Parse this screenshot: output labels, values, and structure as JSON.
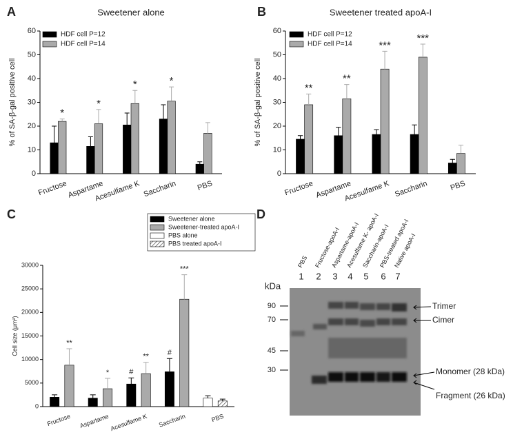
{
  "chart_data": [
    {
      "type": "bar",
      "panel": "A",
      "title": "Sweetener alone",
      "y_label": "% of SA-β-gal positive cell",
      "categories": [
        "Fructose",
        "Aspartame",
        "Acesulfame K",
        "Saccharin",
        "PBS"
      ],
      "series": [
        {
          "name": "HDF cell P=12",
          "color": "#000000",
          "values": [
            13,
            11.5,
            20.5,
            23,
            4
          ],
          "errors": [
            7,
            4,
            5,
            6,
            1
          ],
          "annotations": [
            null,
            null,
            null,
            null,
            null
          ]
        },
        {
          "name": "HDF cell P=14",
          "color": "#aaaaaa",
          "values": [
            22,
            21,
            29.5,
            30.5,
            17
          ],
          "errors": [
            1,
            6,
            5.5,
            6,
            4.5
          ],
          "annotations": [
            "*",
            "*",
            "*",
            "*",
            null
          ]
        }
      ],
      "ylim": [
        0,
        60
      ],
      "yticks": [
        0,
        10,
        20,
        30,
        40,
        50,
        60
      ],
      "legend": "upper left"
    },
    {
      "type": "bar",
      "panel": "B",
      "title": "Sweetener treated apoA-I",
      "y_label": "% of SA-β-gal positive cell",
      "categories": [
        "Fructose",
        "Aspartame",
        "Acesulfame K",
        "Saccharin",
        "PBS"
      ],
      "series": [
        {
          "name": "HDF cell P=12",
          "color": "#000000",
          "values": [
            14.5,
            16,
            16.5,
            16.5,
            4.5
          ],
          "errors": [
            1.5,
            3.5,
            2,
            4,
            1.5
          ],
          "annotations": [
            null,
            null,
            null,
            null,
            null
          ]
        },
        {
          "name": "HDF cell P=14",
          "color": "#aaaaaa",
          "values": [
            29,
            31.5,
            44,
            49,
            8.5
          ],
          "errors": [
            4.5,
            6,
            7.5,
            5.5,
            3.5
          ],
          "annotations": [
            "**",
            "**",
            "***",
            "***",
            null
          ]
        }
      ],
      "ylim": [
        0,
        60
      ],
      "yticks": [
        0,
        10,
        20,
        30,
        40,
        50,
        60
      ],
      "legend": "upper left"
    },
    {
      "type": "bar",
      "panel": "C",
      "y_label": "Cell size (μm²)",
      "categories": [
        "Fructose",
        "Aspartame",
        "Acesulfame K",
        "Saccharin",
        "PBS"
      ],
      "series": [
        {
          "name": "Sweetener alone",
          "color": "#000000",
          "values": [
            2000,
            1800,
            4800,
            7400,
            null
          ],
          "errors": [
            500,
            700,
            1300,
            2800,
            null
          ],
          "annotations": [
            null,
            null,
            "#",
            "#",
            null
          ]
        },
        {
          "name": "Sweetener-treated apoA-I",
          "color": "#aaaaaa",
          "values": [
            8800,
            3800,
            7000,
            22800,
            null
          ],
          "errors": [
            3500,
            2200,
            2400,
            5200,
            null
          ],
          "annotations": [
            "**",
            "*",
            "**",
            "***",
            null
          ]
        },
        {
          "name": "PBS alone",
          "color": "#ffffff",
          "values": [
            null,
            null,
            null,
            null,
            1800
          ],
          "errors": [
            null,
            null,
            null,
            null,
            500
          ],
          "annotations": [
            null,
            null,
            null,
            null,
            null
          ]
        },
        {
          "name": "PBS treated apoA-I",
          "color": "#ffffff",
          "pattern": "hatch",
          "values": [
            null,
            null,
            null,
            null,
            1200
          ],
          "errors": [
            null,
            null,
            null,
            null,
            400
          ],
          "annotations": [
            null,
            null,
            null,
            null,
            null
          ]
        }
      ],
      "ylim": [
        0,
        30000
      ],
      "yticks": [
        0,
        5000,
        10000,
        15000,
        20000,
        25000,
        30000
      ],
      "legend": "outside upper right"
    }
  ],
  "blot": {
    "panel": "D",
    "unit": "kDa",
    "lanes": [
      {
        "number": "1",
        "name": "PBS"
      },
      {
        "number": "2",
        "name": "Fructose-apoA-I"
      },
      {
        "number": "3",
        "name": "Aspartame-apoA-I"
      },
      {
        "number": "4",
        "name": "Acesulfame K- apoA-I"
      },
      {
        "number": "5",
        "name": "Saccharin-apoA-I"
      },
      {
        "number": "6",
        "name": "PBS-treated apoA-I"
      },
      {
        "number": "7",
        "name": "Native apoA-I"
      }
    ],
    "markers": [
      "90",
      "70",
      "45",
      "30"
    ],
    "bands": [
      "Trimer",
      "Cimer",
      "Monomer (28 kDa)",
      "Fragment (26 kDa)"
    ]
  }
}
